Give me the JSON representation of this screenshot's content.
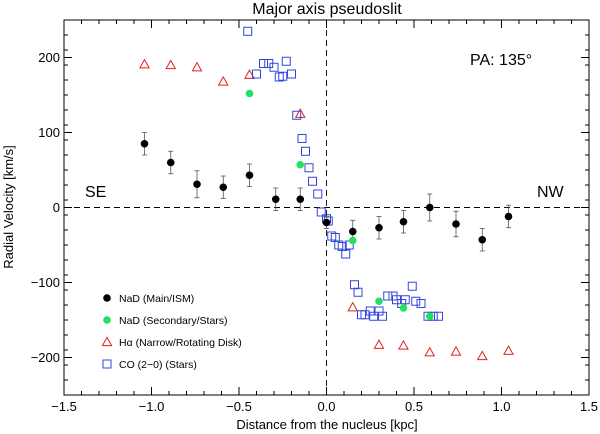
{
  "chart_data": {
    "type": "scatter",
    "title": "Major axis pseudoslit",
    "xlabel": "Distance from the nucleus [kpc]",
    "ylabel": "Radial Velocity [km/s]",
    "xlim": [
      -1.5,
      1.5
    ],
    "ylim": [
      -250,
      250
    ],
    "x_ticks": [
      -1.5,
      -1.0,
      -0.5,
      0.0,
      0.5,
      1.0,
      1.5
    ],
    "x_tick_labels": [
      "−1.5",
      "−1.0",
      "−0.5",
      "0.0",
      "0.5",
      "1.0",
      "1.5"
    ],
    "y_ticks": [
      -200,
      -100,
      0,
      100,
      200
    ],
    "y_tick_labels": [
      "−200",
      "−100",
      "0",
      "100",
      "200"
    ],
    "annotations": {
      "pa": "PA: 135°",
      "left_side": "SE",
      "right_side": "NW"
    },
    "legend_position": "bottom-left",
    "series": [
      {
        "name": "NaD (Main/ISM)",
        "marker": "filled-circle",
        "color": "#000000",
        "x": [
          -1.04,
          -0.89,
          -0.74,
          -0.59,
          -0.44,
          -0.29,
          -0.15,
          0.0,
          0.15,
          0.3,
          0.44,
          0.59,
          0.74,
          0.89,
          1.04
        ],
        "y": [
          85,
          60,
          31,
          27,
          43,
          11,
          11,
          -20,
          -32,
          -27,
          -19,
          0,
          -22,
          -43,
          -12
        ],
        "yerr": [
          15,
          15,
          18,
          15,
          15,
          15,
          15,
          8,
          15,
          15,
          15,
          18,
          17,
          15,
          15
        ]
      },
      {
        "name": "NaD (Secondary/Stars)",
        "marker": "filled-circle",
        "color": "#22e060",
        "x": [
          -0.44,
          -0.15,
          0.15,
          0.3,
          0.44,
          0.59
        ],
        "y": [
          152,
          57,
          -44,
          -125,
          -134,
          -145
        ]
      },
      {
        "name": "Hα (Narrow/Rotating Disk)",
        "marker": "open-triangle",
        "color": "#dd2222",
        "x": [
          -1.04,
          -0.89,
          -0.74,
          -0.59,
          -0.44,
          -0.15,
          0.15,
          0.3,
          0.44,
          0.59,
          0.74,
          0.89,
          1.04
        ],
        "y": [
          191,
          190,
          187,
          168,
          177,
          125,
          -133,
          -183,
          -184,
          -193,
          -192,
          -198,
          -191
        ]
      },
      {
        "name": "CO (2−0) (Stars)",
        "marker": "open-square",
        "color": "#3344dd",
        "x": [
          -0.45,
          -0.4,
          -0.36,
          -0.33,
          -0.3,
          -0.27,
          -0.25,
          -0.23,
          -0.2,
          -0.17,
          -0.14,
          -0.12,
          -0.1,
          -0.08,
          -0.05,
          -0.03,
          0.0,
          0.01,
          0.03,
          0.05,
          0.07,
          0.09,
          0.11,
          0.13,
          0.16,
          0.18,
          0.2,
          0.22,
          0.25,
          0.27,
          0.3,
          0.32,
          0.35,
          0.38,
          0.4,
          0.43,
          0.45,
          0.49,
          0.51,
          0.54,
          0.58,
          0.61,
          0.64
        ],
        "y": [
          235,
          178,
          192,
          192,
          187,
          174,
          175,
          195,
          178,
          123,
          92,
          75,
          53,
          35,
          18,
          -6,
          -15,
          -18,
          -38,
          -40,
          -50,
          -52,
          -62,
          -50,
          -103,
          -113,
          -143,
          -143,
          -138,
          -145,
          -138,
          -145,
          -118,
          -118,
          -123,
          -128,
          -123,
          -105,
          -125,
          -128,
          -145,
          -145,
          -145
        ]
      }
    ]
  }
}
